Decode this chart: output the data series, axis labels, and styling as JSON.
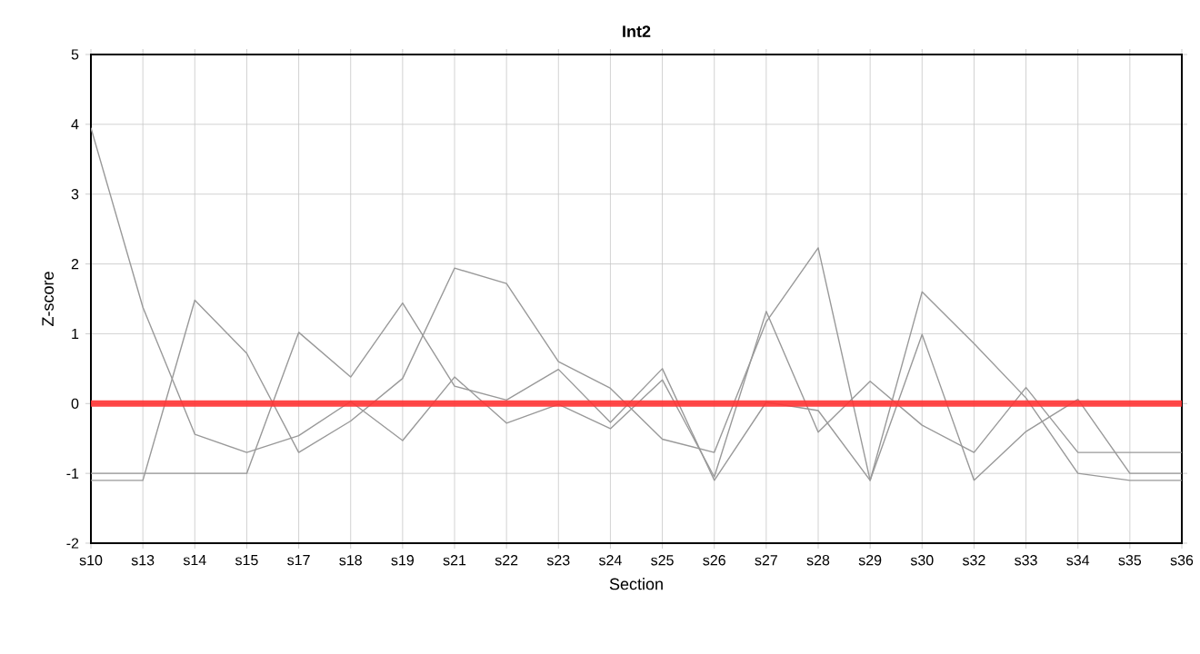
{
  "chart_data": {
    "type": "line",
    "title": "Int2",
    "xlabel": "Section",
    "ylabel": "Z-score",
    "categories": [
      "s10",
      "s13",
      "s14",
      "s15",
      "s17",
      "s18",
      "s19",
      "s21",
      "s22",
      "s23",
      "s24",
      "s25",
      "s26",
      "s27",
      "s28",
      "s29",
      "s30",
      "s32",
      "s33",
      "s34",
      "s35",
      "s36"
    ],
    "series": [
      {
        "color": "#999999",
        "values": [
          3.95,
          1.38,
          -0.44,
          -0.7,
          -0.46,
          0.03,
          -0.53,
          0.38,
          -0.28,
          -0.01,
          -0.36,
          0.34,
          -1.05,
          1.32,
          -0.41,
          0.32,
          -0.31,
          -0.7,
          0.23,
          -0.7,
          -0.7,
          -0.7
        ]
      },
      {
        "color": "#999999",
        "values": [
          -1.1,
          -1.1,
          1.48,
          0.72,
          -0.7,
          -0.25,
          0.36,
          1.94,
          1.72,
          0.6,
          0.22,
          -0.51,
          -0.7,
          1.17,
          2.23,
          -1.1,
          1.6,
          0.86,
          0.08,
          -1.0,
          -1.1,
          -1.1
        ]
      },
      {
        "color": "#999999",
        "values": [
          -1.0,
          -1.0,
          -1.0,
          -1.0,
          1.02,
          0.38,
          1.44,
          0.25,
          0.05,
          0.49,
          -0.27,
          0.5,
          -1.1,
          0.02,
          -0.1,
          -1.1,
          0.99,
          -1.1,
          -0.4,
          0.06,
          -1.0,
          -1.0
        ]
      },
      {
        "color": "#ff3333",
        "values": [
          0,
          0,
          0,
          0,
          0,
          0,
          0,
          0,
          0,
          0,
          0,
          0,
          0,
          0,
          0,
          0,
          0,
          0,
          0,
          0,
          0,
          0
        ]
      }
    ],
    "ylim": [
      -2,
      5
    ],
    "yticks": [
      -2,
      -1,
      0,
      1,
      2,
      3,
      4,
      5
    ],
    "grid": true,
    "legend": false,
    "marker": "none",
    "line_style": "solid"
  }
}
